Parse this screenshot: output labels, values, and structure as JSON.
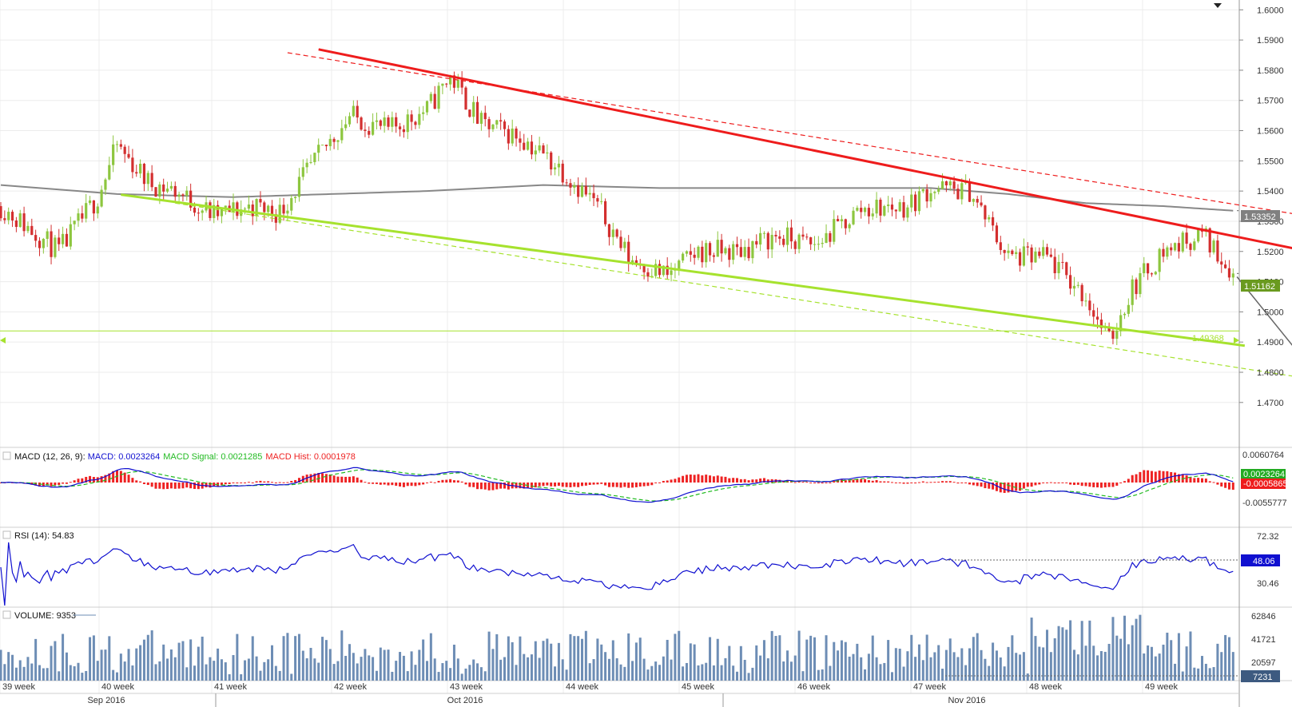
{
  "colors": {
    "bull": "#8dc63f",
    "bear": "#d32f2f",
    "ma_line": "#888888",
    "resistance": "#ee1c1c",
    "support": "#a6e22e",
    "macd_line": "#1010d0",
    "macd_signal": "#22bb22",
    "macd_hist": "#ee2222",
    "rsi_line": "#1010d0",
    "volume": "#6d8db5",
    "projection": "#666666"
  },
  "chart_data": [
    {
      "type": "candlestick",
      "panel": "price",
      "ylim": [
        1.4636,
        1.6014
      ],
      "y_ticks": [
        "1.6000",
        "1.5900",
        "1.5800",
        "1.5700",
        "1.5600",
        "1.5500",
        "1.5400",
        "1.5300",
        "1.5200",
        "1.5100",
        "1.5000",
        "1.4900",
        "1.4800",
        "1.4700"
      ],
      "x_labels": [
        "39 week",
        "40 week",
        "41 week",
        "42 week",
        "43 week",
        "44 week",
        "45 week",
        "46 week",
        "47 week",
        "48 week",
        "49 week"
      ],
      "month_labels": [
        "Sep 2016",
        "Oct 2016",
        "Nov 2016"
      ],
      "anchors": [
        [
          0,
          1.535
        ],
        [
          15,
          1.52
        ],
        [
          25,
          1.538
        ],
        [
          30,
          1.555
        ],
        [
          38,
          1.543
        ],
        [
          45,
          1.54
        ],
        [
          55,
          1.532
        ],
        [
          65,
          1.535
        ],
        [
          72,
          1.533
        ],
        [
          80,
          1.548
        ],
        [
          90,
          1.565
        ],
        [
          100,
          1.56
        ],
        [
          110,
          1.567
        ],
        [
          116,
          1.578
        ],
        [
          124,
          1.562
        ],
        [
          134,
          1.558
        ],
        [
          144,
          1.548
        ],
        [
          154,
          1.535
        ],
        [
          162,
          1.518
        ],
        [
          172,
          1.512
        ],
        [
          180,
          1.52
        ],
        [
          190,
          1.52
        ],
        [
          200,
          1.525
        ],
        [
          210,
          1.522
        ],
        [
          222,
          1.534
        ],
        [
          234,
          1.535
        ],
        [
          240,
          1.541
        ],
        [
          250,
          1.54
        ],
        [
          260,
          1.518
        ],
        [
          270,
          1.518
        ],
        [
          280,
          1.505
        ],
        [
          286,
          1.49
        ],
        [
          292,
          1.508
        ],
        [
          300,
          1.52
        ],
        [
          310,
          1.526
        ],
        [
          318,
          1.513
        ]
      ],
      "price_tags": {
        "ma": "1.53352",
        "last": "1.51162",
        "level": "1.49368"
      },
      "ma_anchors": [
        [
          0,
          1.542
        ],
        [
          30,
          1.539
        ],
        [
          60,
          1.538
        ],
        [
          110,
          1.54
        ],
        [
          140,
          1.542
        ],
        [
          170,
          1.541
        ],
        [
          200,
          1.541
        ],
        [
          240,
          1.541
        ],
        [
          260,
          1.539
        ],
        [
          280,
          1.536
        ],
        [
          300,
          1.535
        ],
        [
          318,
          1.5335
        ]
      ],
      "resistance_line": [
        [
          82,
          1.5869
        ],
        [
          357,
          1.5149
        ]
      ],
      "resistance_dashed": [
        [
          74,
          1.5858
        ],
        [
          409,
          1.517
        ]
      ],
      "support_line": [
        [
          31,
          1.5388
        ],
        [
          321,
          1.4888
        ]
      ],
      "support_dashed": [
        [
          45,
          1.536
        ],
        [
          409,
          1.4637
        ]
      ],
      "horizontal_level": 1.4937,
      "projection": [
        [
          319,
          1.5116
        ],
        [
          335,
          1.4862
        ],
        [
          370,
          1.5114
        ],
        [
          390,
          1.4745
        ]
      ]
    },
    {
      "type": "line",
      "panel": "macd",
      "title": "MACD (12, 26, 9): ",
      "series": [
        {
          "name": "MACD",
          "label": "MACD: 0.0023264",
          "values": "computed"
        },
        {
          "name": "MACD Signal",
          "label": "MACD Signal: 0.0021285"
        },
        {
          "name": "MACD Hist",
          "label": "MACD Hist: 0.0001978"
        }
      ],
      "y_ticks": [
        "0.0060764",
        "-0.0055777"
      ],
      "price_tags": {
        "a": "0.0023264",
        "b": "-0.0005865"
      }
    },
    {
      "type": "line",
      "panel": "rsi",
      "title": "RSI (14): 54.83",
      "y_ticks": [
        "72.32",
        "30.46"
      ],
      "price_tags": {
        "last": "48.06"
      }
    },
    {
      "type": "bar",
      "panel": "volume",
      "title": "VOLUME: 9353",
      "y_ticks": [
        "62846",
        "41721",
        "20597"
      ],
      "price_tags": {
        "last": "7231"
      }
    }
  ]
}
